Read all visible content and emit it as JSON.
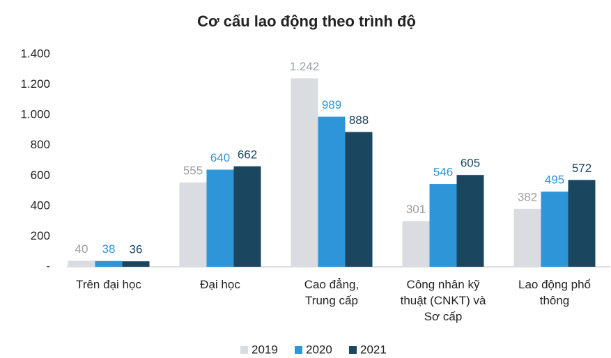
{
  "chart_data": {
    "type": "bar",
    "title": "Cơ cấu lao động theo trình độ",
    "categories": [
      "Trên đại học",
      "Đại học",
      "Cao đẳng,\nTrung cấp",
      "Công nhân kỹ\nthuật (CNKT) và\nSơ cấp",
      "Lao động phổ\nthông"
    ],
    "series": [
      {
        "name": "2019",
        "color": "#d9dce0",
        "label_color": "#9a9ea3",
        "values": [
          40,
          555,
          1242,
          301,
          382
        ],
        "value_labels": [
          "40",
          "555",
          "1.242",
          "301",
          "382"
        ]
      },
      {
        "name": "2020",
        "color": "#2e95d8",
        "label_color": "#2e95d8",
        "values": [
          38,
          640,
          989,
          546,
          495
        ]
      },
      {
        "name": "2021",
        "color": "#1b4660",
        "label_color": "#1b4660",
        "values": [
          36,
          662,
          888,
          605,
          572
        ]
      }
    ],
    "ylim": [
      0,
      1400
    ],
    "yticks": [
      {
        "value": 0,
        "label": "-"
      },
      200,
      400,
      600,
      800,
      {
        "value": 1000,
        "label": "1.000"
      },
      {
        "value": 1200,
        "label": "1.200"
      },
      {
        "value": 1400,
        "label": "1.400"
      }
    ],
    "grid": false,
    "legend": "bottom"
  }
}
